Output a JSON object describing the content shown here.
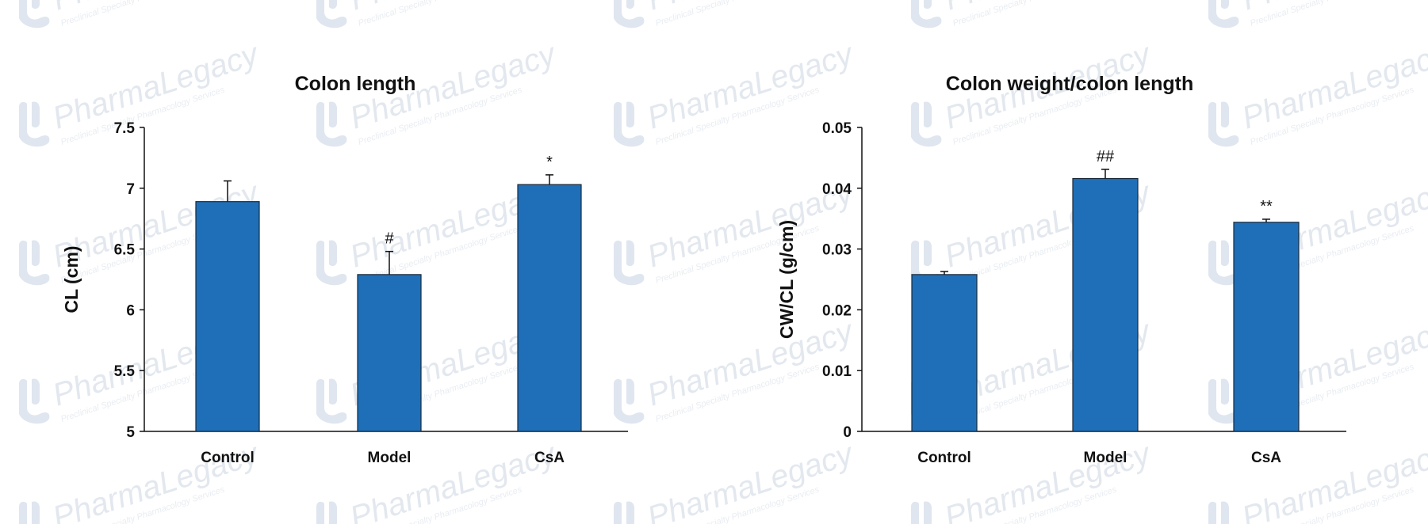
{
  "watermark": {
    "brand_plain": "Pharma",
    "brand_italic": "Legacy",
    "tagline": "Preclinical Specialty Pharmacology Services",
    "color": "#dfe6ef"
  },
  "colors": {
    "bar_fill": "#1f6fb8",
    "bar_stroke": "#1b2a3a",
    "axis": "#111111"
  },
  "chart_data": [
    {
      "type": "bar",
      "title": "Colon length",
      "ylabel": "CL (cm)",
      "xlabel": "",
      "categories": [
        "Control",
        "Model",
        "CsA"
      ],
      "values": [
        6.89,
        6.29,
        7.03
      ],
      "errors": [
        0.17,
        0.19,
        0.08
      ],
      "annotations": [
        "",
        "#",
        "*"
      ],
      "ylim": [
        5,
        7.5
      ],
      "yticks": [
        5,
        5.5,
        6,
        6.5,
        7,
        7.5
      ],
      "ytick_labels": [
        "5",
        "5.5",
        "6",
        "6.5",
        "7",
        "7.5"
      ],
      "grid": false,
      "legend": "none"
    },
    {
      "type": "bar",
      "title": "Colon weight/colon length",
      "ylabel": "CW/CL (g/cm)",
      "xlabel": "",
      "categories": [
        "Control",
        "Model",
        "CsA"
      ],
      "values": [
        0.0258,
        0.0416,
        0.0344
      ],
      "errors": [
        0.0005,
        0.0015,
        0.0005
      ],
      "annotations": [
        "",
        "##",
        "**"
      ],
      "ylim": [
        0,
        0.05
      ],
      "yticks": [
        0,
        0.01,
        0.02,
        0.03,
        0.04,
        0.05
      ],
      "ytick_labels": [
        "0",
        "0.01",
        "0.02",
        "0.03",
        "0.04",
        "0.05"
      ],
      "grid": false,
      "legend": "none"
    }
  ]
}
